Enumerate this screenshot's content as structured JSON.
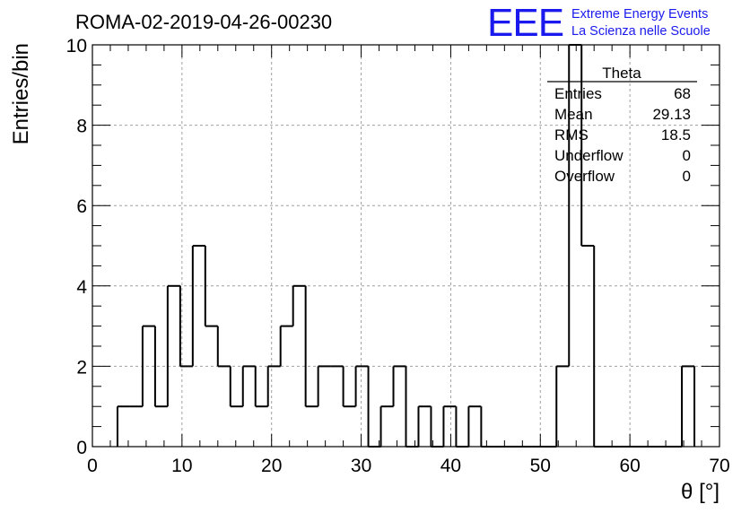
{
  "chart_data": {
    "type": "bar",
    "title": "ROMA-02-2019-04-26-00230",
    "xlabel": "θ [°]",
    "ylabel": "Entries/bin",
    "xlim": [
      0,
      70
    ],
    "ylim": [
      0,
      10
    ],
    "x_ticks": [
      "0",
      "10",
      "20",
      "30",
      "40",
      "50",
      "60",
      "70"
    ],
    "y_ticks": [
      "0",
      "2",
      "4",
      "6",
      "8",
      "10"
    ],
    "grid": true,
    "bin_width": 1.4,
    "bin_lows": [
      2.8,
      4.2,
      5.6,
      7.0,
      8.4,
      9.8,
      11.2,
      12.6,
      14.0,
      15.4,
      16.8,
      18.2,
      19.6,
      21.0,
      22.4,
      23.8,
      25.2,
      26.6,
      28.0,
      29.4,
      30.8,
      32.2,
      33.6,
      35.0,
      36.4,
      37.8,
      39.2,
      40.6,
      42.0,
      43.4,
      44.8,
      46.2,
      47.6,
      49.0,
      50.4,
      51.8,
      53.2,
      54.6,
      56.0,
      57.4,
      58.8,
      60.2,
      61.6,
      63.0,
      64.4,
      65.8
    ],
    "values": [
      1,
      1,
      3,
      1,
      4,
      2,
      5,
      3,
      2,
      1,
      2,
      1,
      2,
      3,
      4,
      1,
      2,
      2,
      1,
      2,
      0,
      1,
      2,
      0,
      1,
      0,
      1,
      0,
      1,
      0,
      0,
      0,
      0,
      0,
      0,
      2,
      10,
      5,
      0,
      0,
      0,
      0,
      0,
      0,
      0,
      2
    ],
    "stats": {
      "name": "Theta",
      "rows": [
        {
          "label": "Entries",
          "value": "68"
        },
        {
          "label": "Mean",
          "value": "29.13"
        },
        {
          "label": "RMS",
          "value": "18.5"
        },
        {
          "label": "Underflow",
          "value": "0"
        },
        {
          "label": "Overflow",
          "value": "0"
        }
      ]
    }
  },
  "logo": {
    "mark": "EEE",
    "line1": "Extreme Energy Events",
    "line2": "La Scienza nelle Scuole"
  },
  "colors": {
    "logo": "#1a1aee",
    "grid": "#a0a0a0",
    "line": "#000000"
  }
}
